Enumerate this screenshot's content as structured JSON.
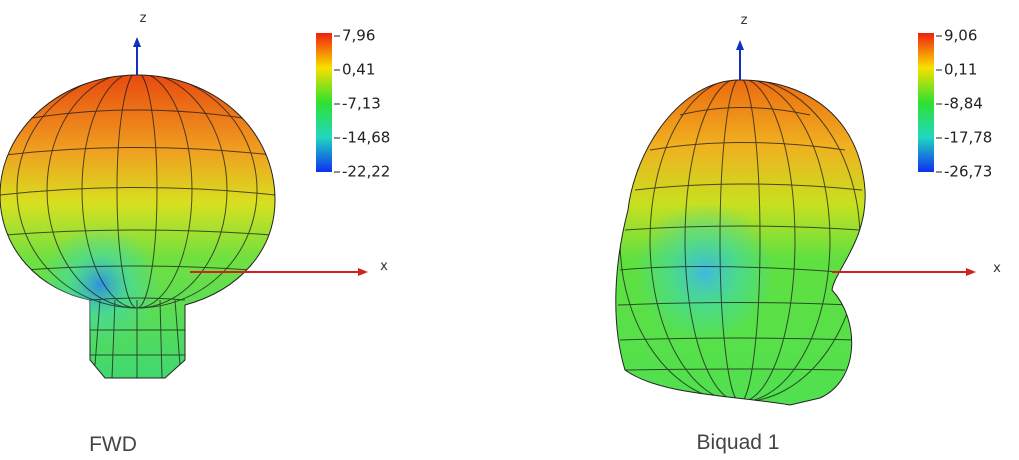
{
  "panels": [
    {
      "caption": "FWD",
      "axes": {
        "z": "z",
        "x": "x"
      },
      "colorbar": [
        "7,96",
        "0,41",
        "-7,13",
        "-14,68",
        "-22,22"
      ]
    },
    {
      "caption": "Biquad 1",
      "axes": {
        "z": "z",
        "x": "x"
      },
      "colorbar": [
        "9,06",
        "0,11",
        "-8,84",
        "-17,78",
        "-26,73"
      ]
    }
  ]
}
